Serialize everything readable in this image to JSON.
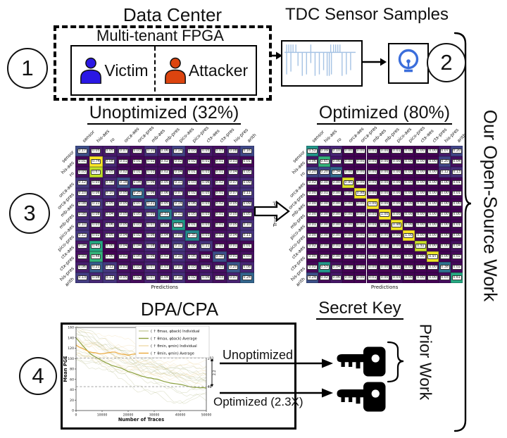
{
  "steps": {
    "one": "1",
    "two": "2",
    "three": "3",
    "four": "4"
  },
  "top": {
    "data_center": "Data Center",
    "fpga": "Multi-tenant FPGA",
    "victim": "Victim",
    "attacker": "Attacker",
    "tdc_title": "TDC Sensor Samples"
  },
  "right_brace_label": "Our Open-Source Work",
  "matrices": {
    "xlabel": "Predictions",
    "ylabel": "True Label",
    "labels": [
      "sensor",
      "his-aes",
      "ro",
      "orca-aes",
      "orca-pres",
      "mb-aes",
      "mb-pres",
      "pico-aes",
      "pico-pres",
      "ctx-aes",
      "ctx-pres",
      "his-pres",
      "arith"
    ],
    "unoptimized": {
      "title": "Unoptimized (32%)",
      "values": [
        [
          0.17,
          0.05,
          0.05,
          0.07,
          0.03,
          0.1,
          0.06,
          0.14,
          0.03,
          0.05,
          0.03,
          0.08,
          0.16
        ],
        [
          0.01,
          0.74,
          0.08,
          0.01,
          0.01,
          0.02,
          0.02,
          0.02,
          0.02,
          0.01,
          0.01,
          0.03,
          0.01
        ],
        [
          0.03,
          0.67,
          0.05,
          0.02,
          0.01,
          0.03,
          0.02,
          0.04,
          0.01,
          0.03,
          0.01,
          0.04,
          0.05
        ],
        [
          0.12,
          0.03,
          0.08,
          0.18,
          0.04,
          0.06,
          0.05,
          0.11,
          0.03,
          0.06,
          0.02,
          0.07,
          0.09
        ],
        [
          0.1,
          0.06,
          0.1,
          0.05,
          0.25,
          0.06,
          0.06,
          0.07,
          0.02,
          0.05,
          0.01,
          0.07,
          0.11
        ],
        [
          0.08,
          0.11,
          0.05,
          0.05,
          0.07,
          0.21,
          0.05,
          0.14,
          0.06,
          0.03,
          0.02,
          0.05,
          0.09
        ],
        [
          0.08,
          0.08,
          0.04,
          0.05,
          0.05,
          0.09,
          0.31,
          0.11,
          0.05,
          0.03,
          0.01,
          0.05,
          0.05
        ],
        [
          0.1,
          0.03,
          0.06,
          0.05,
          0.03,
          0.07,
          0.05,
          0.4,
          0.01,
          0.03,
          0.01,
          0.05,
          0.1
        ],
        [
          0.12,
          0.02,
          0.05,
          0.04,
          0.02,
          0.06,
          0.04,
          0.09,
          0.35,
          0.03,
          0.03,
          0.04,
          0.11
        ],
        [
          0.04,
          0.45,
          0.0,
          0.04,
          0.04,
          0.08,
          0.03,
          0.12,
          0.05,
          0.11,
          0.01,
          0.01,
          0.01
        ],
        [
          0.03,
          0.48,
          0.0,
          0.02,
          0.05,
          0.06,
          0.02,
          0.1,
          0.05,
          0.01,
          0.18,
          0.01,
          0.03
        ],
        [
          0.06,
          0.21,
          0.12,
          0.03,
          0.03,
          0.07,
          0.03,
          0.07,
          0.03,
          0.04,
          0.03,
          0.2,
          0.08
        ],
        [
          0.13,
          0.08,
          0.11,
          0.05,
          0.02,
          0.07,
          0.04,
          0.1,
          0.02,
          0.06,
          0.03,
          0.07,
          0.24
        ]
      ]
    },
    "optimized": {
      "title": "Optimized (80%)",
      "values": [
        [
          0.52,
          0.09,
          0.1,
          0.0,
          0.0,
          0.01,
          0.0,
          0.01,
          0.0,
          0.0,
          0.0,
          0.07,
          0.2
        ],
        [
          0.06,
          0.65,
          0.06,
          0.0,
          0.0,
          0.0,
          0.0,
          0.0,
          0.0,
          0.0,
          0.0,
          0.2,
          0.04
        ],
        [
          0.2,
          0.2,
          0.34,
          0.0,
          0.0,
          0.0,
          0.0,
          0.0,
          0.0,
          0.0,
          0.0,
          0.12,
          0.13
        ],
        [
          0.02,
          0.0,
          0.0,
          0.95,
          0.0,
          0.0,
          0.0,
          0.0,
          0.0,
          0.0,
          0.0,
          0.0,
          0.01
        ],
        [
          0.0,
          0.01,
          0.0,
          0.0,
          0.98,
          0.0,
          0.0,
          0.0,
          0.0,
          0.0,
          0.0,
          0.0,
          0.01
        ],
        [
          0.0,
          0.0,
          0.0,
          0.0,
          0.0,
          1.0,
          0.0,
          0.0,
          0.0,
          0.0,
          0.0,
          0.0,
          0.0
        ],
        [
          0.0,
          0.0,
          0.0,
          0.0,
          0.0,
          0.0,
          1.0,
          0.0,
          0.0,
          0.0,
          0.0,
          0.0,
          0.0
        ],
        [
          0.01,
          0.0,
          0.0,
          0.0,
          0.0,
          0.0,
          0.0,
          0.98,
          0.0,
          0.0,
          0.0,
          0.0,
          0.01
        ],
        [
          0.0,
          0.0,
          0.0,
          0.0,
          0.0,
          0.0,
          0.0,
          0.0,
          1.0,
          0.0,
          0.0,
          0.0,
          0.0
        ],
        [
          0.02,
          0.0,
          0.01,
          0.0,
          0.0,
          0.0,
          0.0,
          0.0,
          0.0,
          0.92,
          0.0,
          0.0,
          0.04
        ],
        [
          0.0,
          0.0,
          0.0,
          0.0,
          0.0,
          0.0,
          0.0,
          0.0,
          0.0,
          0.0,
          0.97,
          0.0,
          0.02
        ],
        [
          0.02,
          0.53,
          0.04,
          0.0,
          0.0,
          0.0,
          0.0,
          0.01,
          0.0,
          0.0,
          0.0,
          0.38,
          0.02
        ],
        [
          0.24,
          0.02,
          0.06,
          0.0,
          0.0,
          0.01,
          0.0,
          0.03,
          0.0,
          0.0,
          0.0,
          0.03,
          0.61
        ]
      ]
    }
  },
  "chart_data": {
    "type": "line",
    "title": "DPA/CPA",
    "xlabel": "Number of Traces",
    "ylabel": "Mean PGE",
    "xlim": [
      0,
      50000
    ],
    "ylim": [
      0,
      160
    ],
    "xticks": [
      0,
      10000,
      20000,
      30000,
      40000,
      50000
    ],
    "yticks": [
      0,
      20,
      40,
      60,
      80,
      100,
      120,
      140,
      160
    ],
    "hlines": [
      {
        "y": 101,
        "label": "101"
      },
      {
        "y": 46,
        "label": "46"
      }
    ],
    "gap_label": "2.2",
    "legend_position": "upper right",
    "grid": false,
    "legend": [
      {
        "label": "( ↑ θmax, φback) Individual",
        "color": "#c6cc9e"
      },
      {
        "label": "( ↑ θmax, φback) Average",
        "color": "#8ba03e"
      },
      {
        "label": "( ↑ θmin, φmin) Individual",
        "color": "#efdcab"
      },
      {
        "label": "( ↑ θmin, φmin) Average",
        "color": "#eaa83c"
      }
    ],
    "series": [
      {
        "name": "( ↑ θmax, φback) Individual",
        "role": "individual",
        "count": 13,
        "color": "rgba(168,176,118,0.38)",
        "start_range": [
          95,
          165
        ],
        "end_range": [
          2,
          88
        ]
      },
      {
        "name": "( ↑ θmax, φback) Average",
        "role": "average",
        "color": "#8ba03e",
        "points": [
          [
            0,
            140
          ],
          [
            2500,
            126
          ],
          [
            5000,
            113
          ],
          [
            7500,
            104
          ],
          [
            10000,
            96
          ],
          [
            12500,
            91
          ],
          [
            15000,
            86
          ],
          [
            17500,
            81
          ],
          [
            20000,
            76
          ],
          [
            22500,
            72
          ],
          [
            25000,
            68
          ],
          [
            27500,
            64
          ],
          [
            30000,
            61
          ],
          [
            32500,
            58
          ],
          [
            35000,
            55
          ],
          [
            37500,
            52
          ],
          [
            40000,
            50
          ],
          [
            42500,
            48
          ],
          [
            45000,
            47
          ],
          [
            47500,
            46
          ],
          [
            50000,
            45
          ]
        ]
      },
      {
        "name": "( ↑ θmin, φmin) Individual",
        "role": "individual",
        "count": 12,
        "color": "rgba(238,210,150,0.4)",
        "start_range": [
          100,
          155
        ],
        "end_range": [
          55,
          130
        ]
      },
      {
        "name": "( ↑ θmin, φmin) Average",
        "role": "average",
        "color": "#eaa83c",
        "points": [
          [
            0,
            127
          ],
          [
            2500,
            120
          ],
          [
            5000,
            114
          ],
          [
            7500,
            111
          ],
          [
            10000,
            109
          ],
          [
            12500,
            111
          ],
          [
            15000,
            112
          ],
          [
            17500,
            108
          ],
          [
            20000,
            106
          ],
          [
            22500,
            108
          ],
          [
            25000,
            109
          ],
          [
            27500,
            106
          ],
          [
            30000,
            104
          ],
          [
            32500,
            106
          ],
          [
            35000,
            107
          ],
          [
            37500,
            104
          ],
          [
            40000,
            103
          ],
          [
            42500,
            105
          ],
          [
            45000,
            106
          ],
          [
            47500,
            104
          ],
          [
            50000,
            103
          ]
        ]
      }
    ]
  },
  "bottom": {
    "secret_key": "Secret Key",
    "unoptimized": "Unoptimized",
    "optimized": "Optimized (2.3X)",
    "prior_work": "Prior Work"
  },
  "colors": {
    "victim": "#2a18e4",
    "attacker": "#dc440f",
    "bulb": "#3b6edb",
    "waveform": "#a6c3e4",
    "matrix_low": "#440154",
    "matrix_high": "#fde725"
  }
}
